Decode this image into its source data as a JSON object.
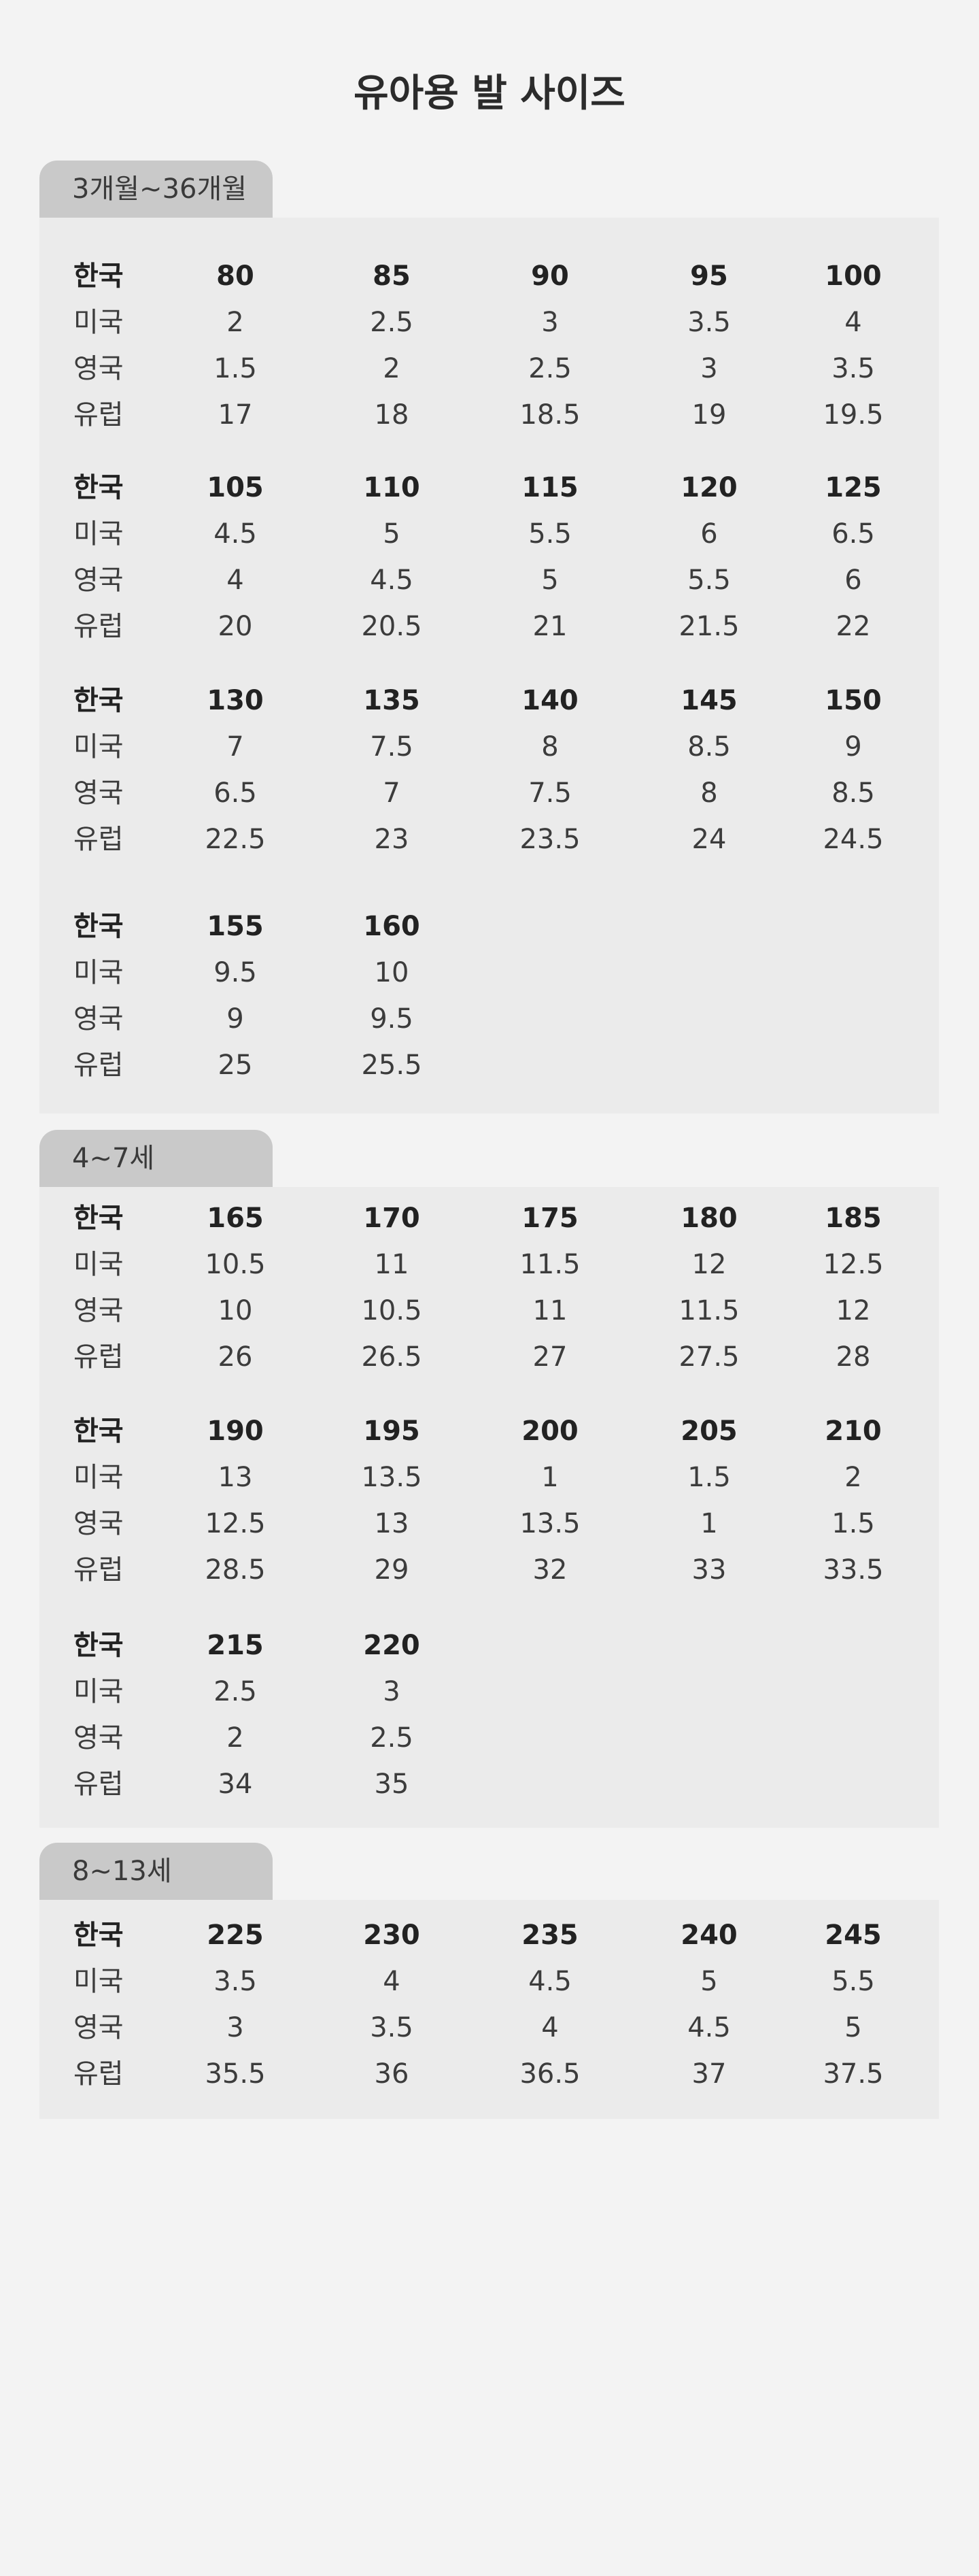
{
  "page_title": "유아용 발 사이즈",
  "row_labels": [
    "한국",
    "미국",
    "영국",
    "유럽"
  ],
  "sections": [
    {
      "tab": "3개월~36개월",
      "blocks": [
        {
          "columns": [
            [
              "80",
              "2",
              "1.5",
              "17"
            ],
            [
              "85",
              "2.5",
              "2",
              "18"
            ],
            [
              "90",
              "3",
              "2.5",
              "18.5"
            ],
            [
              "95",
              "3.5",
              "3",
              "19"
            ],
            [
              "100",
              "4",
              "3.5",
              "19.5"
            ]
          ]
        },
        {
          "columns": [
            [
              "105",
              "4.5",
              "4",
              "20"
            ],
            [
              "110",
              "5",
              "4.5",
              "20.5"
            ],
            [
              "115",
              "5.5",
              "5",
              "21"
            ],
            [
              "120",
              "6",
              "5.5",
              "21.5"
            ],
            [
              "125",
              "6.5",
              "6",
              "22"
            ]
          ]
        },
        {
          "columns": [
            [
              "130",
              "7",
              "6.5",
              "22.5"
            ],
            [
              "135",
              "7.5",
              "7",
              "23"
            ],
            [
              "140",
              "8",
              "7.5",
              "23.5"
            ],
            [
              "145",
              "8.5",
              "8",
              "24"
            ],
            [
              "150",
              "9",
              "8.5",
              "24.5"
            ]
          ]
        },
        {
          "columns": [
            [
              "155",
              "9.5",
              "9",
              "25"
            ],
            [
              "160",
              "10",
              "9.5",
              "25.5"
            ]
          ]
        }
      ]
    },
    {
      "tab": "4~7세",
      "blocks": [
        {
          "columns": [
            [
              "165",
              "10.5",
              "10",
              "26"
            ],
            [
              "170",
              "11",
              "10.5",
              "26.5"
            ],
            [
              "175",
              "11.5",
              "11",
              "27"
            ],
            [
              "180",
              "12",
              "11.5",
              "27.5"
            ],
            [
              "185",
              "12.5",
              "12",
              "28"
            ]
          ]
        },
        {
          "columns": [
            [
              "190",
              "13",
              "12.5",
              "28.5"
            ],
            [
              "195",
              "13.5",
              "13",
              "29"
            ],
            [
              "200",
              "1",
              "13.5",
              "32"
            ],
            [
              "205",
              "1.5",
              "1",
              "33"
            ],
            [
              "210",
              "2",
              "1.5",
              "33.5"
            ]
          ]
        },
        {
          "columns": [
            [
              "215",
              "2.5",
              "2",
              "34"
            ],
            [
              "220",
              "3",
              "2.5",
              "35"
            ]
          ]
        }
      ]
    },
    {
      "tab": "8~13세",
      "blocks": [
        {
          "columns": [
            [
              "225",
              "3.5",
              "3",
              "35.5"
            ],
            [
              "230",
              "4",
              "3.5",
              "36"
            ],
            [
              "235",
              "4.5",
              "4",
              "36.5"
            ],
            [
              "240",
              "5",
              "4.5",
              "37"
            ],
            [
              "245",
              "5.5",
              "5",
              "37.5"
            ]
          ]
        }
      ]
    }
  ]
}
